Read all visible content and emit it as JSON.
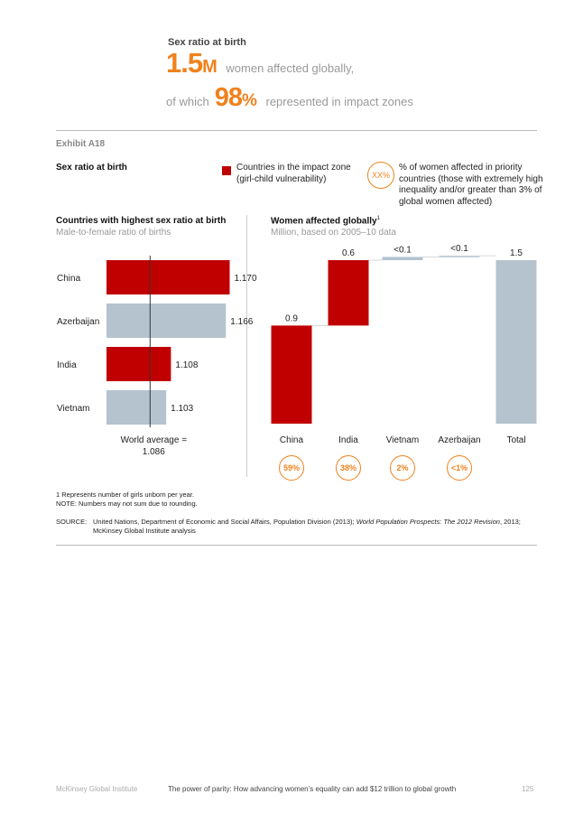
{
  "header": {
    "title": "Sex ratio at birth",
    "big_value": "1.5",
    "big_unit": "M",
    "line1_rest": "women affected globally,",
    "line2_prefix": "of which",
    "pct_value": "98",
    "pct_unit": "%",
    "line2_rest": "represented in impact zones"
  },
  "exhibit": "Exhibit A18",
  "chart_title": "Sex ratio at birth",
  "legend": {
    "impact_zone_label": "Countries in the impact zone (girl-child vulnerability)",
    "circle_label": "XX%",
    "circle_desc": "% of women affected in priority countries (those with extremely high inequality and/or greater than 3% of global women affected)"
  },
  "colors": {
    "impact": "#c00000",
    "other": "#b4c3ce",
    "accent": "#f0821e"
  },
  "chart_data": [
    {
      "type": "bar",
      "orientation": "horizontal",
      "title": "Countries with highest sex ratio at birth",
      "subtitle": "Male-to-female ratio of births",
      "categories": [
        "China",
        "Azerbaijan",
        "India",
        "Vietnam"
      ],
      "values": [
        1.17,
        1.166,
        1.108,
        1.103
      ],
      "value_labels": [
        "1.170",
        "1.166",
        "1.108",
        "1.103"
      ],
      "impact_zone": [
        true,
        false,
        true,
        false
      ],
      "reference_line": {
        "value": 1.086,
        "label_line1": "World average =",
        "label_line2": "1.086"
      },
      "xlim": [
        1.04,
        1.18
      ]
    },
    {
      "type": "bar",
      "subtype": "waterfall",
      "title": "Women affected globally",
      "title_sup": "1",
      "subtitle": "Million, based on 2005–10 data",
      "categories": [
        "China",
        "India",
        "Vietnam",
        "Azerbaijan",
        "Total"
      ],
      "values": [
        0.9,
        0.6,
        0.03,
        0.01,
        1.5
      ],
      "value_labels": [
        "0.9",
        "0.6",
        "<0.1",
        "<0.1",
        "1.5"
      ],
      "is_total": [
        false,
        false,
        false,
        false,
        true
      ],
      "impact_zone": [
        true,
        true,
        false,
        false,
        false
      ],
      "shares": [
        "59%",
        "38%",
        "2%",
        "<1%"
      ],
      "ylim": [
        0,
        1.5
      ]
    }
  ],
  "footnotes": {
    "note1": "1   Represents number of girls unborn per year.",
    "note2": "NOTE: Numbers may not sum due to rounding.",
    "source_label": "SOURCE:",
    "source_pre": "United Nations, Department of Economic and Social Affairs, Population Division (2013); ",
    "source_italic": "World Population Prospects: The 2012 Revision",
    "source_post": ", 2013;",
    "source_line2": "McKinsey Global Institute analysis"
  },
  "page_footer": {
    "publisher": "McKinsey Global Institute",
    "report": "The power of parity: How advancing women’s equality can add $12 trillion to global growth",
    "page_number": "125"
  }
}
